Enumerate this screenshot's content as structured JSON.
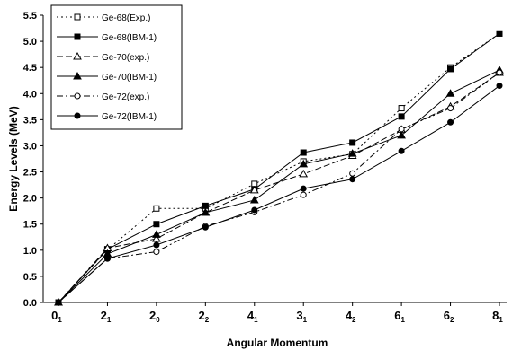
{
  "chart_data": {
    "type": "line",
    "xlabel": "Angular Momentum",
    "ylabel": "Energy Levels (MeV)",
    "ylim": [
      0.0,
      5.5
    ],
    "yticks": [
      "0.0",
      "0.5",
      "1.0",
      "1.5",
      "2.0",
      "2.5",
      "3.0",
      "3.5",
      "4.0",
      "4.5",
      "5.0",
      "5.5"
    ],
    "categories": [
      {
        "main": "0",
        "sub": "1"
      },
      {
        "main": "2",
        "sub": "1"
      },
      {
        "main": "2",
        "sub": "0"
      },
      {
        "main": "2",
        "sub": "2"
      },
      {
        "main": "4",
        "sub": "1"
      },
      {
        "main": "3",
        "sub": "1"
      },
      {
        "main": "4",
        "sub": "2"
      },
      {
        "main": "6",
        "sub": "1"
      },
      {
        "main": "6",
        "sub": "2"
      },
      {
        "main": "8",
        "sub": "1"
      }
    ],
    "legend_position": "top-left",
    "grid": false,
    "series": [
      {
        "name": "Ge-68(Exp.)",
        "marker": "square-open",
        "dash": "2,3",
        "values": [
          0.0,
          1.01,
          1.8,
          1.8,
          2.27,
          2.7,
          2.84,
          3.72,
          4.5,
          5.15
        ]
      },
      {
        "name": "Ge-68(IBM-1)",
        "marker": "square-filled",
        "dash": "",
        "values": [
          0.0,
          1.02,
          1.5,
          1.85,
          2.17,
          2.87,
          3.06,
          3.56,
          4.47,
          5.15
        ]
      },
      {
        "name": "Ge-70(exp.)",
        "marker": "triangle-open",
        "dash": "7,3",
        "values": [
          0.0,
          1.04,
          1.22,
          1.72,
          2.15,
          2.46,
          2.81,
          3.31,
          3.75,
          4.4
        ]
      },
      {
        "name": "Ge-70(IBM-1)",
        "marker": "triangle-filled",
        "dash": "",
        "values": [
          0.0,
          0.93,
          1.3,
          1.72,
          1.96,
          2.65,
          2.85,
          3.2,
          4.0,
          4.45
        ]
      },
      {
        "name": "Ge-72(exp.)",
        "marker": "circle-open",
        "dash": "7,3,2,3",
        "values": [
          0.0,
          0.84,
          0.97,
          1.46,
          1.73,
          2.06,
          2.47,
          3.32,
          3.72,
          4.4
        ]
      },
      {
        "name": "Ge-72(IBM-1)",
        "marker": "circle-filled",
        "dash": "",
        "values": [
          0.0,
          0.84,
          1.1,
          1.44,
          1.77,
          2.18,
          2.36,
          2.9,
          3.45,
          4.15
        ]
      }
    ]
  }
}
